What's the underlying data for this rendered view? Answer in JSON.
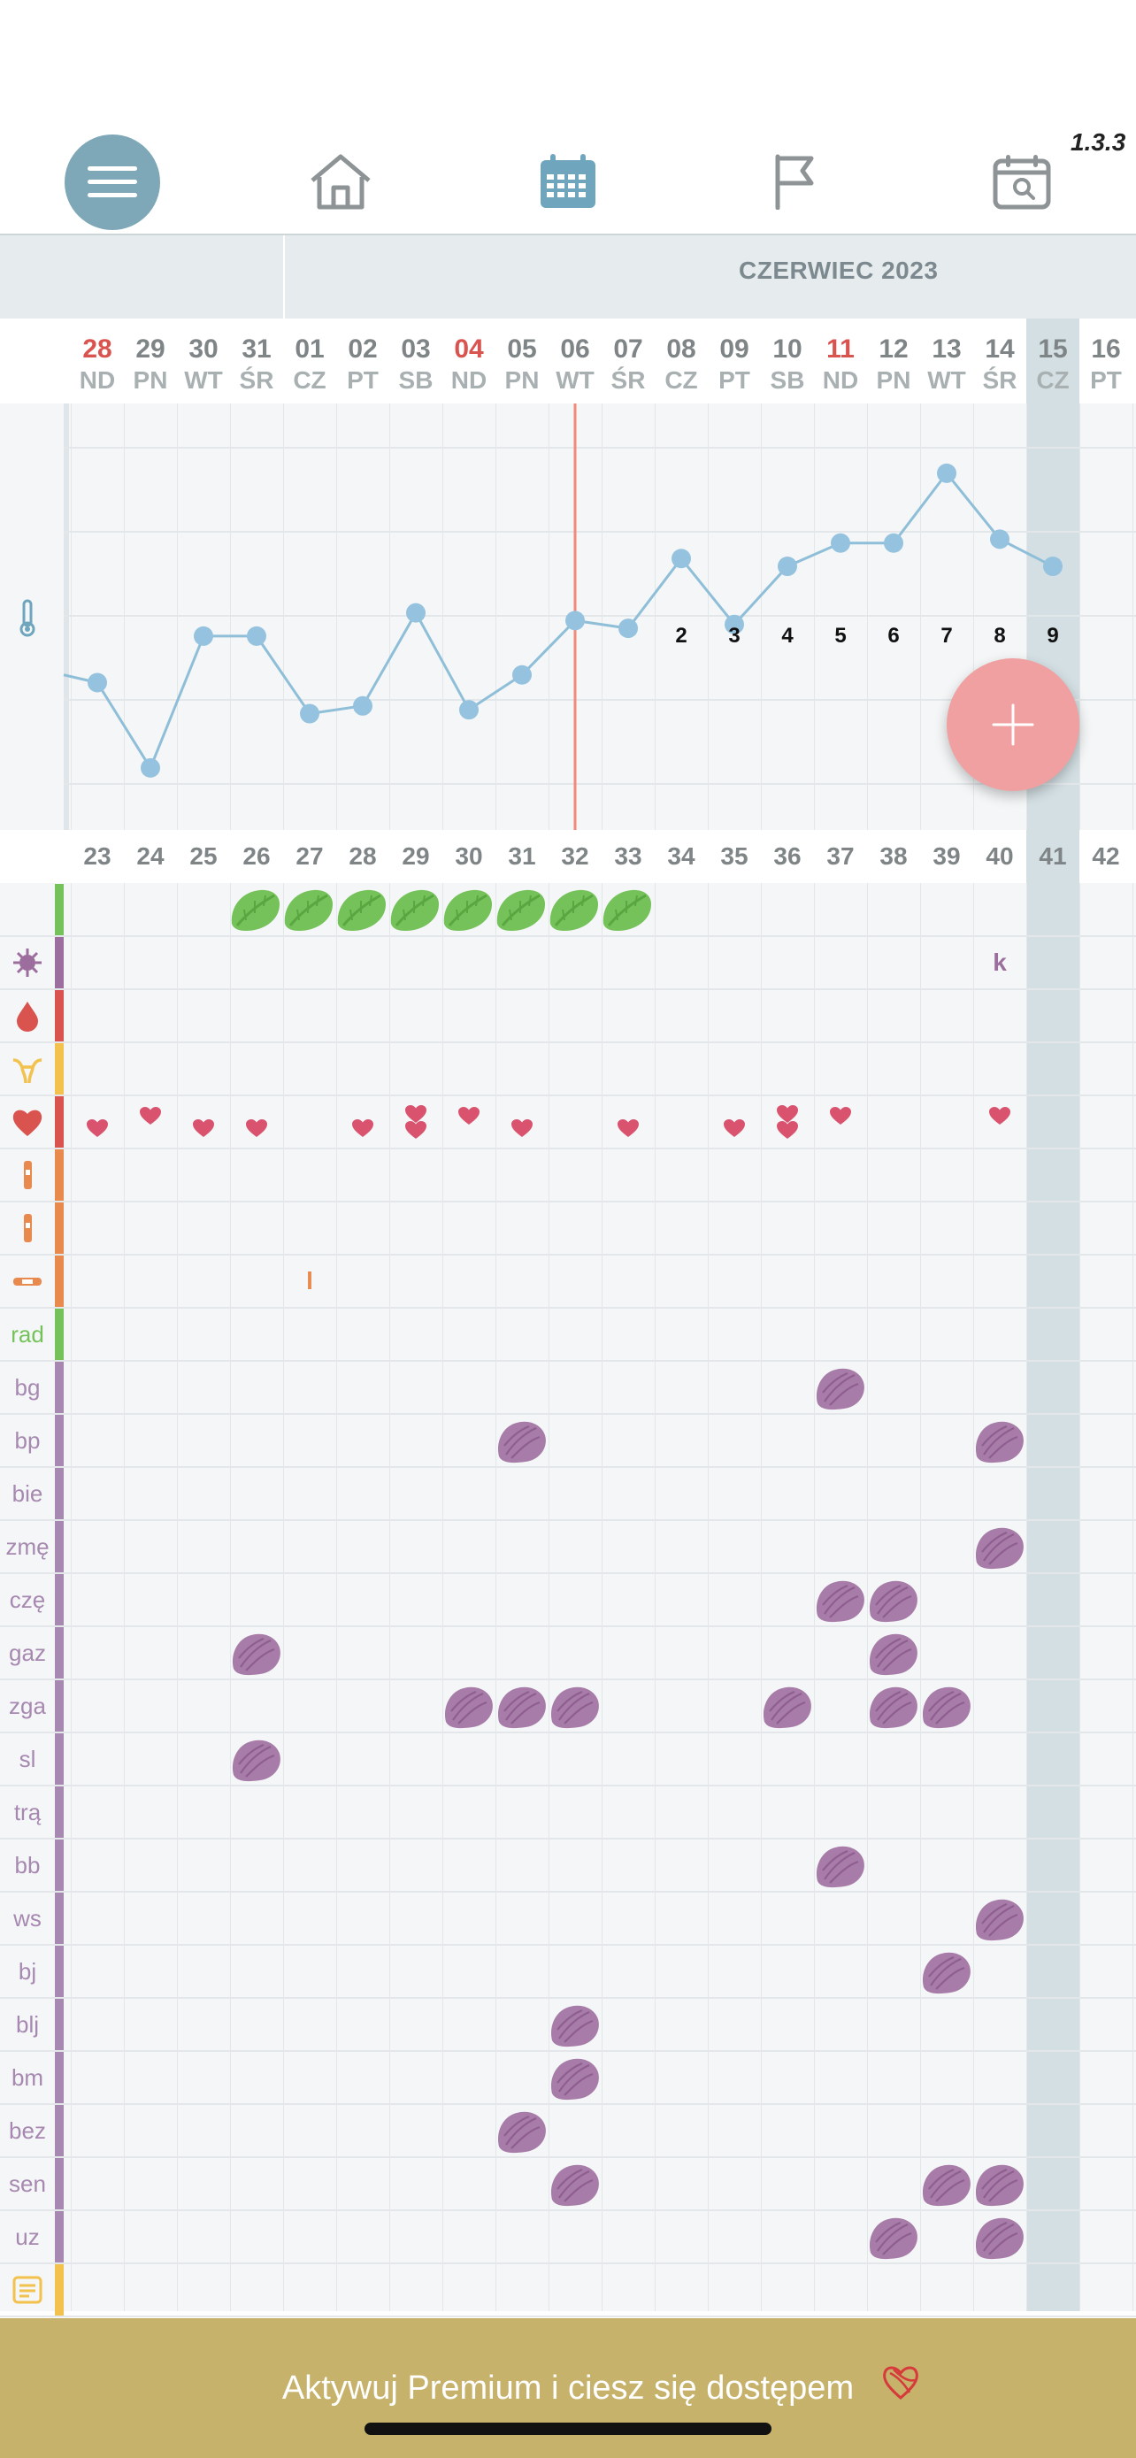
{
  "version": "1.3.3",
  "nav": {
    "items": [
      {
        "name": "menu-button",
        "icon": "hamburger-icon"
      },
      {
        "name": "home-button",
        "icon": "home-icon"
      },
      {
        "name": "calendar-button",
        "icon": "calendar-icon"
      },
      {
        "name": "flag-button",
        "icon": "flag-icon"
      },
      {
        "name": "calendar-search-button",
        "icon": "calendar-search-icon"
      }
    ]
  },
  "header": {
    "month": "CZERWIEC 2023"
  },
  "days": [
    {
      "num": "28",
      "name": "ND",
      "sunday": true
    },
    {
      "num": "29",
      "name": "PN"
    },
    {
      "num": "30",
      "name": "WT"
    },
    {
      "num": "31",
      "name": "ŚR"
    },
    {
      "num": "01",
      "name": "CZ"
    },
    {
      "num": "02",
      "name": "PT"
    },
    {
      "num": "03",
      "name": "SB"
    },
    {
      "num": "04",
      "name": "ND",
      "sunday": true
    },
    {
      "num": "05",
      "name": "PN"
    },
    {
      "num": "06",
      "name": "WT"
    },
    {
      "num": "07",
      "name": "ŚR"
    },
    {
      "num": "08",
      "name": "CZ"
    },
    {
      "num": "09",
      "name": "PT"
    },
    {
      "num": "10",
      "name": "SB"
    },
    {
      "num": "11",
      "name": "ND",
      "sunday": true
    },
    {
      "num": "12",
      "name": "PN"
    },
    {
      "num": "13",
      "name": "WT"
    },
    {
      "num": "14",
      "name": "ŚR"
    },
    {
      "num": "15",
      "name": "CZ",
      "today": true
    },
    {
      "num": "16",
      "name": "PT"
    }
  ],
  "temperature": {
    "icon": "thermometer-icon",
    "levels": [
      3.4,
      2.3,
      4.0,
      4.0,
      3.0,
      3.1,
      4.3,
      3.05,
      3.5,
      4.2,
      4.1,
      5.0,
      4.15,
      4.9,
      5.2,
      5.2,
      6.1,
      5.25,
      4.9
    ],
    "y_range": [
      1.5,
      7.0
    ],
    "leading_level": 3.5,
    "postovulation_labels": [
      "2",
      "3",
      "4",
      "5",
      "6",
      "7",
      "8",
      "9"
    ],
    "postovulation_start_index": 11
  },
  "cycle_days": [
    "23",
    "24",
    "25",
    "26",
    "27",
    "28",
    "29",
    "30",
    "31",
    "32",
    "33",
    "34",
    "35",
    "36",
    "37",
    "38",
    "39",
    "40",
    "41",
    "42"
  ],
  "rows": [
    {
      "label": "",
      "icon": "leaf-icon",
      "color": "#76c25a",
      "marks": [],
      "type": "leaf",
      "leaf_cols": [
        3,
        4,
        5,
        6,
        7,
        8,
        9,
        10
      ]
    },
    {
      "label": "",
      "icon": "virus-icon",
      "color": "#9c6e9e",
      "type": "text",
      "text_marks": [
        {
          "col": 17,
          "text": "k"
        }
      ]
    },
    {
      "label": "",
      "icon": "drop-icon",
      "color": "#d9534f",
      "type": "none"
    },
    {
      "label": "",
      "icon": "cervix-icon",
      "color": "#f2c14e",
      "type": "none"
    },
    {
      "label": "",
      "icon": "heart-icon",
      "color": "#d9534f",
      "type": "hearts",
      "hearts": [
        {
          "col": 0,
          "n": 1,
          "pos": "low"
        },
        {
          "col": 1,
          "n": 1,
          "pos": "high"
        },
        {
          "col": 2,
          "n": 1,
          "pos": "low"
        },
        {
          "col": 3,
          "n": 1,
          "pos": "low"
        },
        {
          "col": 5,
          "n": 1,
          "pos": "low"
        },
        {
          "col": 6,
          "n": 2
        },
        {
          "col": 7,
          "n": 1,
          "pos": "high"
        },
        {
          "col": 8,
          "n": 1,
          "pos": "low"
        },
        {
          "col": 10,
          "n": 1,
          "pos": "low"
        },
        {
          "col": 12,
          "n": 1,
          "pos": "low"
        },
        {
          "col": 13,
          "n": 2
        },
        {
          "col": 14,
          "n": 1,
          "pos": "high"
        },
        {
          "col": 17,
          "n": 1,
          "pos": "high"
        }
      ]
    },
    {
      "label": "",
      "icon": "test-strip-icon",
      "color": "#e8894e",
      "type": "none"
    },
    {
      "label": "",
      "icon": "test-strip-icon",
      "color": "#e8894e",
      "type": "none"
    },
    {
      "label": "",
      "icon": "pill-strip-icon",
      "color": "#e8894e",
      "type": "text",
      "text_marks": [
        {
          "col": 4,
          "text": "l"
        }
      ],
      "text_color": "#e8894e"
    },
    {
      "label": "rad",
      "color": "#76c25a",
      "type": "blobs",
      "blob_cols": []
    },
    {
      "label": "bg",
      "color": "#a688b0",
      "type": "blobs",
      "blob_cols": [
        14
      ]
    },
    {
      "label": "bp",
      "color": "#a688b0",
      "type": "blobs",
      "blob_cols": [
        8,
        17
      ]
    },
    {
      "label": "bie",
      "color": "#a688b0",
      "type": "blobs",
      "blob_cols": []
    },
    {
      "label": "zmę",
      "color": "#a688b0",
      "type": "blobs",
      "blob_cols": [
        17
      ]
    },
    {
      "label": "czę",
      "color": "#a688b0",
      "type": "blobs",
      "blob_cols": [
        14,
        15
      ]
    },
    {
      "label": "gaz",
      "color": "#a688b0",
      "type": "blobs",
      "blob_cols": [
        3,
        15
      ]
    },
    {
      "label": "zga",
      "color": "#a688b0",
      "type": "blobs",
      "blob_cols": [
        7,
        8,
        9,
        13,
        15,
        16
      ]
    },
    {
      "label": "sl",
      "color": "#a688b0",
      "type": "blobs",
      "blob_cols": [
        3
      ]
    },
    {
      "label": "trą",
      "color": "#a688b0",
      "type": "blobs",
      "blob_cols": []
    },
    {
      "label": "bb",
      "color": "#a688b0",
      "type": "blobs",
      "blob_cols": [
        14
      ]
    },
    {
      "label": "ws",
      "color": "#a688b0",
      "type": "blobs",
      "blob_cols": [
        17
      ]
    },
    {
      "label": "bj",
      "color": "#a688b0",
      "type": "blobs",
      "blob_cols": [
        16
      ]
    },
    {
      "label": "blj",
      "color": "#a688b0",
      "type": "blobs",
      "blob_cols": [
        9
      ]
    },
    {
      "label": "bm",
      "color": "#a688b0",
      "type": "blobs",
      "blob_cols": [
        9
      ]
    },
    {
      "label": "bez",
      "color": "#a688b0",
      "type": "blobs",
      "blob_cols": [
        8
      ]
    },
    {
      "label": "sen",
      "color": "#a688b0",
      "type": "blobs",
      "blob_cols": [
        9,
        16,
        17
      ]
    },
    {
      "label": "uz",
      "color": "#a688b0",
      "type": "blobs",
      "blob_cols": [
        15,
        17
      ]
    },
    {
      "label": "",
      "icon": "note-icon",
      "color": "#f2c14e",
      "type": "none"
    }
  ],
  "banner": {
    "text": "Aktywuj Premium i ciesz się dostępem",
    "icon": "heart-scribble-icon"
  },
  "fab": {
    "icon": "plus-icon"
  },
  "colors": {
    "sunday": "#d9534f",
    "today_band": "#d3dfe3",
    "line": "#8fbfd8",
    "dot": "#95c3df",
    "ovulation_line": "#f08a7a",
    "heart": "#d9536f",
    "blob": "#a77ca8",
    "leaf": "#76c25a"
  }
}
